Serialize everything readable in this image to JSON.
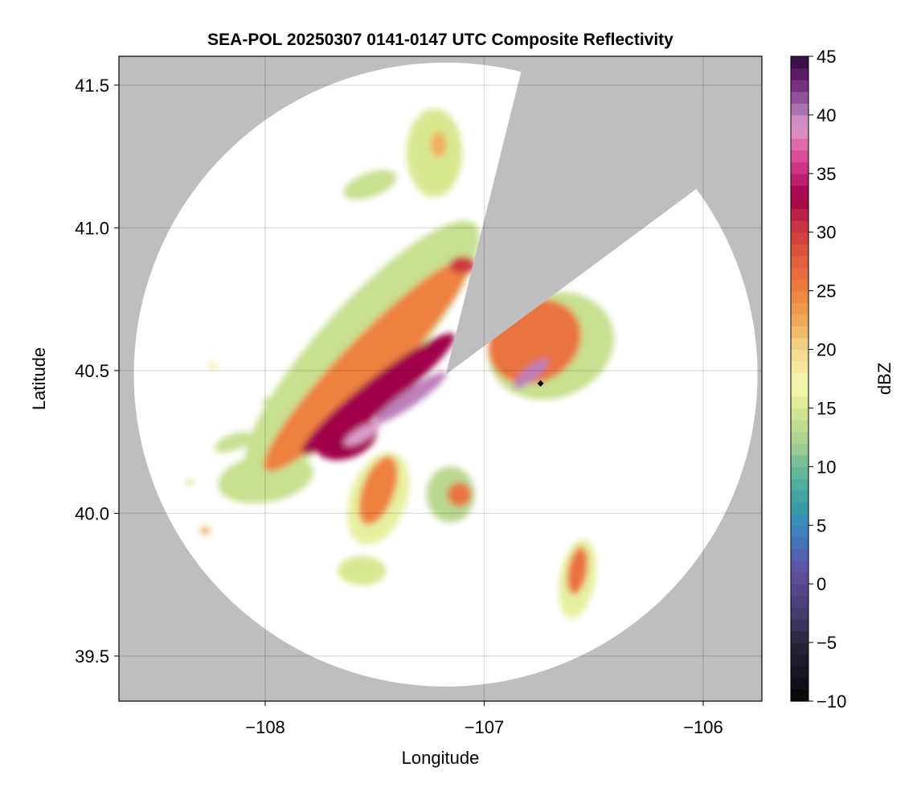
{
  "chart_data": {
    "type": "heatmap",
    "title": "SEA-POL 20250307 0141-0147 UTC Composite Reflectivity",
    "xlabel": "Longitude",
    "ylabel": "Latitude",
    "xlim": [
      -108.668,
      -105.732
    ],
    "ylim": [
      39.342,
      41.601
    ],
    "xticks": [
      -108,
      -107,
      -106
    ],
    "xtick_labels": [
      "−108",
      "−107",
      "−106"
    ],
    "yticks": [
      39.5,
      40.0,
      40.5,
      41.0,
      41.5
    ],
    "ytick_labels": [
      "39.5",
      "40.0",
      "40.5",
      "41.0",
      "41.5"
    ],
    "grid": true,
    "background_color": "#bebebe",
    "colorbar": {
      "label": "dBZ",
      "range": [
        -10,
        45
      ],
      "ticks": [
        -10,
        -5,
        0,
        5,
        10,
        15,
        20,
        25,
        30,
        35,
        40,
        45
      ],
      "tick_labels": [
        "−10",
        "−5",
        "0",
        "5",
        "10",
        "15",
        "20",
        "25",
        "30",
        "35",
        "40",
        "45"
      ],
      "stops": [
        [
          -10,
          "#050505"
        ],
        [
          -8,
          "#141220"
        ],
        [
          -5,
          "#2a2438"
        ],
        [
          -3,
          "#403868"
        ],
        [
          0,
          "#5a4890"
        ],
        [
          1,
          "#6050a0"
        ],
        [
          3,
          "#4a6ab8"
        ],
        [
          5,
          "#3a88c0"
        ],
        [
          7,
          "#3aa0a0"
        ],
        [
          10,
          "#6abb98"
        ],
        [
          12,
          "#a8d090"
        ],
        [
          15,
          "#d8e890"
        ],
        [
          17,
          "#f6f8b0"
        ],
        [
          20,
          "#f2d890"
        ],
        [
          22,
          "#f0b060"
        ],
        [
          25,
          "#ee8040"
        ],
        [
          28,
          "#e05a3c"
        ],
        [
          31,
          "#c42c44"
        ],
        [
          33,
          "#a0004a"
        ],
        [
          35,
          "#c8287a"
        ],
        [
          37,
          "#e05aa0"
        ],
        [
          39,
          "#dc9ccc"
        ],
        [
          41,
          "#9c62a8"
        ],
        [
          43,
          "#6a2070"
        ],
        [
          45,
          "#2d0a3a"
        ]
      ]
    },
    "radar": {
      "lon": -107.176,
      "lat": 40.486,
      "range_lon_deg": 1.424,
      "blocked_sector_azimuth_deg": [
        14,
        53.5
      ]
    },
    "marker": {
      "lon": -106.743,
      "lat": 40.455,
      "shape": "diamond",
      "color": "#000000"
    },
    "echoes": [
      {
        "lon": -107.558,
        "lat": 40.573,
        "a": 0.771,
        "b": 0.202,
        "rot": -48,
        "dbz": 14
      },
      {
        "lon": -107.998,
        "lat": 40.123,
        "a": 0.22,
        "b": 0.11,
        "rot": -10,
        "dbz": 14
      },
      {
        "lon": -106.695,
        "lat": 40.587,
        "a": 0.294,
        "b": 0.239,
        "rot": -20,
        "dbz": 14
      },
      {
        "lon": -107.484,
        "lat": 40.052,
        "a": 0.128,
        "b": 0.22,
        "rot": 20,
        "dbz": 16
      },
      {
        "lon": -107.154,
        "lat": 40.066,
        "a": 0.11,
        "b": 0.128,
        "rot": 0,
        "dbz": 13
      },
      {
        "lon": -107.228,
        "lat": 41.263,
        "a": 0.128,
        "b": 0.202,
        "rot": 0,
        "dbz": 15
      },
      {
        "lon": -107.521,
        "lat": 41.151,
        "a": 0.128,
        "b": 0.055,
        "rot": -20,
        "dbz": 14
      },
      {
        "lon": -106.574,
        "lat": 39.77,
        "a": 0.081,
        "b": 0.183,
        "rot": 10,
        "dbz": 16
      },
      {
        "lon": -107.558,
        "lat": 39.799,
        "a": 0.11,
        "b": 0.066,
        "rot": 0,
        "dbz": 15
      },
      {
        "lon": -108.145,
        "lat": 40.249,
        "a": 0.092,
        "b": 0.037,
        "rot": -20,
        "dbz": 14
      },
      {
        "lon": -107.98,
        "lat": 40.39,
        "a": 0.029,
        "b": 0.022,
        "rot": 0,
        "dbz": 14
      },
      {
        "lon": -108.237,
        "lat": 40.517,
        "a": 0.022,
        "b": 0.018,
        "rot": 0,
        "dbz": 18
      },
      {
        "lon": -108.274,
        "lat": 39.939,
        "a": 0.022,
        "b": 0.018,
        "rot": 0,
        "dbz": 22
      },
      {
        "lon": -108.343,
        "lat": 40.108,
        "a": 0.018,
        "b": 0.015,
        "rot": 0,
        "dbz": 15
      },
      {
        "lon": -107.301,
        "lat": 40.672,
        "a": 0.22,
        "b": 0.044,
        "rot": -60,
        "dbz": 6
      },
      {
        "lon": -107.539,
        "lat": 40.517,
        "a": 0.66,
        "b": 0.117,
        "rot": -46,
        "dbz": 25
      },
      {
        "lon": -106.769,
        "lat": 40.601,
        "a": 0.22,
        "b": 0.183,
        "rot": -30,
        "dbz": 26
      },
      {
        "lon": -107.484,
        "lat": 40.08,
        "a": 0.073,
        "b": 0.165,
        "rot": 20,
        "dbz": 25
      },
      {
        "lon": -106.574,
        "lat": 39.799,
        "a": 0.044,
        "b": 0.11,
        "rot": 10,
        "dbz": 26
      },
      {
        "lon": -107.114,
        "lat": 40.066,
        "a": 0.055,
        "b": 0.055,
        "rot": 0,
        "dbz": 26
      },
      {
        "lon": -107.209,
        "lat": 41.292,
        "a": 0.037,
        "b": 0.06,
        "rot": 0,
        "dbz": 22
      },
      {
        "lon": -107.099,
        "lat": 40.869,
        "a": 0.06,
        "b": 0.04,
        "rot": 0,
        "dbz": 30
      },
      {
        "lon": -107.484,
        "lat": 40.418,
        "a": 0.44,
        "b": 0.073,
        "rot": -38,
        "dbz": 33
      },
      {
        "lon": -107.631,
        "lat": 40.263,
        "a": 0.147,
        "b": 0.092,
        "rot": -20,
        "dbz": 33
      },
      {
        "lon": -107.338,
        "lat": 40.404,
        "a": 0.2,
        "b": 0.037,
        "rot": -35,
        "dbz": 40
      },
      {
        "lon": -107.558,
        "lat": 40.277,
        "a": 0.092,
        "b": 0.03,
        "rot": -30,
        "dbz": 39
      },
      {
        "lon": -106.787,
        "lat": 40.489,
        "a": 0.103,
        "b": 0.03,
        "rot": -40,
        "dbz": 40
      }
    ]
  }
}
